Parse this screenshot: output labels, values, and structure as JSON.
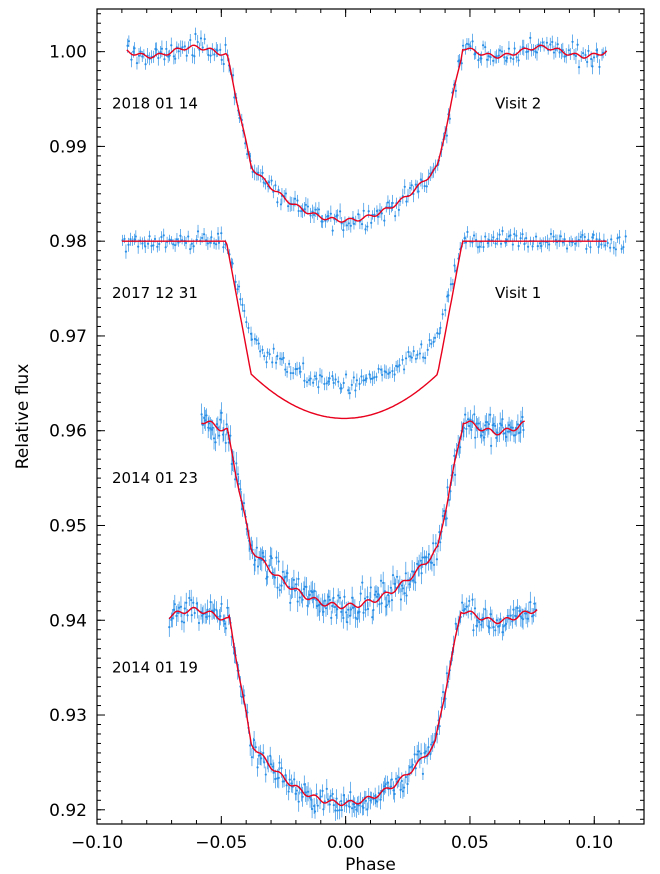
{
  "chart_data": {
    "type": "scatter",
    "xlabel": "Phase",
    "ylabel": "Relative flux",
    "xlim": [
      -0.1,
      0.12
    ],
    "ylim": [
      0.9185,
      1.0045
    ],
    "x_ticks": [
      -0.1,
      -0.05,
      0.0,
      0.05,
      0.1
    ],
    "x_tick_labels": [
      "−0.10",
      "−0.05",
      "0.00",
      "0.05",
      "0.10"
    ],
    "y_ticks": [
      0.92,
      0.93,
      0.94,
      0.95,
      0.96,
      0.97,
      0.98,
      0.99,
      1.0
    ],
    "y_tick_labels": [
      "0.92",
      "0.93",
      "0.94",
      "0.95",
      "0.96",
      "0.97",
      "0.98",
      "0.99",
      "1.00"
    ],
    "colors": {
      "data": "#2a8fe6",
      "model": "#e8001c"
    },
    "series": [
      {
        "label": "2018 01 14",
        "visit": "Visit 2",
        "baseline": 1.0,
        "depth": 0.0178,
        "x_range": [
          -0.088,
          0.105
        ],
        "ingress": [
          -0.048,
          -0.038
        ],
        "egress": [
          0.037,
          0.047
        ],
        "noise": 0.0008,
        "model": "fit"
      },
      {
        "label": "2017 12 31",
        "visit": "Visit 1",
        "baseline": 0.98,
        "depth": 0.015,
        "x_range": [
          -0.09,
          0.113
        ],
        "ingress": [
          -0.048,
          -0.038
        ],
        "egress": [
          0.037,
          0.047
        ],
        "noise": 0.0007,
        "model": "limb-darkened",
        "model_depth": 0.0187,
        "model_x_range": [
          -0.09,
          0.105
        ]
      },
      {
        "label": "2014 01 23",
        "baseline": 0.9605,
        "depth": 0.019,
        "x_range": [
          -0.058,
          0.072
        ],
        "ingress": [
          -0.048,
          -0.038
        ],
        "egress": [
          0.037,
          0.047
        ],
        "noise": 0.0011,
        "model": "fit"
      },
      {
        "label": "2014 01 19",
        "baseline": 0.9405,
        "depth": 0.0198,
        "x_range": [
          -0.071,
          0.077
        ],
        "ingress": [
          -0.047,
          -0.038
        ],
        "egress": [
          0.036,
          0.046
        ],
        "noise": 0.001,
        "model": "fit"
      }
    ]
  }
}
